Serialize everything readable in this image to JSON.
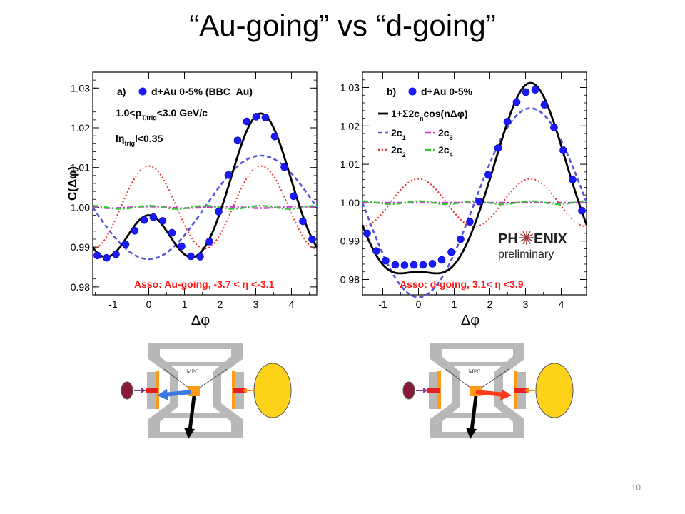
{
  "slide": {
    "title": "“Au-going” vs “d-going”",
    "page_number": "10"
  },
  "colors": {
    "data_points": "#1a1aff",
    "fit": "#000000",
    "c1": "#5555dd",
    "c2": "#e83030",
    "c3": "#cc33cc",
    "c4": "#33cc33",
    "asso_text": "#ff1a1a",
    "detector_body": "#b8b8b8",
    "nucleus_au": "#ffd21a",
    "nucleus_d": "#8b1a3a"
  },
  "chart_data": [
    {
      "type": "line",
      "panel_label": "a)",
      "legend_entry": "d+Au 0-5% (BBC_Au)",
      "cut_label_1": "1.0<p",
      "cut_label_1_sub": "T,trig",
      "cut_label_1_tail": "<3.0 GeV/c",
      "cut_label_2": "lη",
      "cut_label_2_sub": "trig",
      "cut_label_2_tail": "l<0.35",
      "annotation": "Asso: Au-going, -3.7 < η <-3.1",
      "xlabel": "Δφ",
      "ylabel": "C(Δφ)",
      "xlim": [
        -1.57,
        4.71
      ],
      "ylim": [
        0.978,
        1.034
      ],
      "xticks": [
        -1,
        0,
        1,
        2,
        3,
        4
      ],
      "xtick_labels": [
        "-1",
        "0",
        "1",
        "2",
        "3",
        "4"
      ],
      "yticks": [
        0.98,
        0.99,
        1.0,
        1.01,
        1.02,
        1.03
      ],
      "ytick_labels": [
        "0.98",
        "0.99",
        "1.00",
        "1.01",
        "1.02",
        "1.03"
      ],
      "fourier": {
        "c1": -0.0065,
        "c2": 0.0052,
        "c3": 0.0001,
        "c4": 0.0002
      },
      "points": {
        "x": [
          -1.44,
          -1.18,
          -0.92,
          -0.65,
          -0.39,
          -0.13,
          0.13,
          0.39,
          0.65,
          0.92,
          1.18,
          1.44,
          1.7,
          1.96,
          2.23,
          2.49,
          2.75,
          3.01,
          3.27,
          3.53,
          3.8,
          4.06,
          4.32,
          4.58
        ],
        "y": [
          0.9879,
          0.9873,
          0.9882,
          0.9907,
          0.9941,
          0.9968,
          0.9975,
          0.9966,
          0.9936,
          0.9902,
          0.9877,
          0.9876,
          0.9914,
          0.9989,
          1.0081,
          1.0168,
          1.0216,
          1.0228,
          1.0226,
          1.0178,
          1.0101,
          1.0028,
          0.9965,
          0.992
        ]
      }
    },
    {
      "type": "line",
      "panel_label": "b)",
      "legend_entry": "d+Au 0-5%",
      "fit_label": "1+Σ2c",
      "fit_label_sub": "n",
      "fit_label_tail": "cos(nΔφ)",
      "legend": [
        "2c",
        "2c",
        "2c",
        "2c"
      ],
      "legend_subs": [
        "1",
        "3",
        "2",
        "4"
      ],
      "logo_text_1": "PH",
      "logo_text_2": "ENIX",
      "logo_text_3": "preliminary",
      "annotation": "Asso: d-going, 3.1< η <3.9",
      "xlabel": "Δφ",
      "xlim": [
        -1.57,
        4.71
      ],
      "ylim": [
        0.976,
        1.034
      ],
      "xticks": [
        -1,
        0,
        1,
        2,
        3,
        4
      ],
      "xtick_labels": [
        "-1",
        "0",
        "1",
        "2",
        "3",
        "4"
      ],
      "yticks": [
        0.98,
        0.99,
        1.0,
        1.01,
        1.02,
        1.03
      ],
      "ytick_labels": [
        "0.98",
        "0.99",
        "1.00",
        "1.01",
        "1.02",
        "1.03"
      ],
      "fourier": {
        "c1": -0.0123,
        "c2": 0.0031,
        "c3": 0.0,
        "c4": 0.0002
      },
      "points": {
        "x": [
          -1.44,
          -1.18,
          -0.92,
          -0.65,
          -0.39,
          -0.13,
          0.13,
          0.39,
          0.65,
          0.92,
          1.18,
          1.44,
          1.7,
          1.96,
          2.23,
          2.49,
          2.75,
          3.01,
          3.27,
          3.53,
          3.8,
          4.06,
          4.32,
          4.58
        ],
        "y": [
          0.992,
          0.9874,
          0.9849,
          0.9838,
          0.9837,
          0.9838,
          0.9838,
          0.9841,
          0.9851,
          0.9871,
          0.9905,
          0.995,
          1.0003,
          1.0072,
          1.0142,
          1.0211,
          1.0262,
          1.0288,
          1.0294,
          1.0255,
          1.0196,
          1.0136,
          1.006,
          0.9979
        ]
      }
    }
  ],
  "detectors": [
    {
      "label": "MPC",
      "arrow_colored": "#3a7ae6",
      "arrow_colored_direction": "left"
    },
    {
      "label": "MPC",
      "arrow_colored": "#ff3a1a",
      "arrow_colored_direction": "right"
    }
  ]
}
